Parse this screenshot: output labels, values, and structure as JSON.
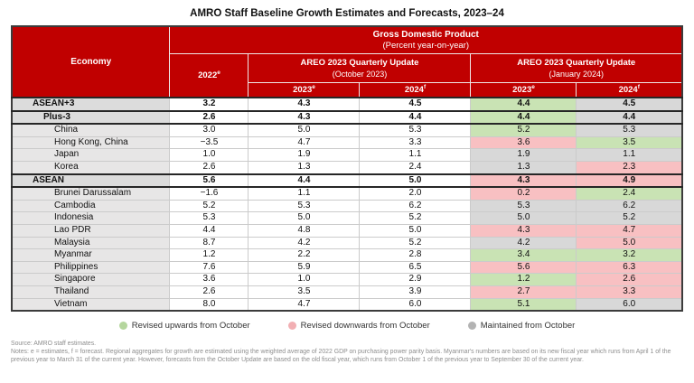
{
  "title": "AMRO Staff Baseline Growth Estimates and Forecasts, 2023–24",
  "chart_data": {
    "type": "table",
    "title": "AMRO Staff Baseline Growth Estimates and Forecasts, 2023–24",
    "banner": {
      "line1": "Gross Domestic Product",
      "line2": "(Percent year-on-year)"
    },
    "columns": {
      "economy": "Economy",
      "base": {
        "year": "2022",
        "sup": "e"
      },
      "groups": [
        {
          "title": "AREO 2023 Quarterly Update",
          "subtitle": "(October 2023)",
          "sub": [
            {
              "year": "2023",
              "sup": "e"
            },
            {
              "year": "2024",
              "sup": "f"
            }
          ]
        },
        {
          "title": "AREO 2023 Quarterly Update",
          "subtitle": "(January 2024)",
          "sub": [
            {
              "year": "2023",
              "sup": "e"
            },
            {
              "year": "2024",
              "sup": "f"
            }
          ]
        }
      ]
    },
    "rows": [
      {
        "name": "ASEAN+3",
        "level": "aggregate",
        "v2022": "3.2",
        "oct2023": "4.3",
        "oct2024": "4.5",
        "jan2023": "4.4",
        "jan2023_status": "up",
        "jan2024": "4.5",
        "jan2024_status": "same"
      },
      {
        "name": "Plus-3",
        "level": "aggregate2",
        "v2022": "2.6",
        "oct2023": "4.3",
        "oct2024": "4.4",
        "jan2023": "4.4",
        "jan2023_status": "up",
        "jan2024": "4.4",
        "jan2024_status": "same"
      },
      {
        "name": "China",
        "level": "country",
        "v2022": "3.0",
        "oct2023": "5.0",
        "oct2024": "5.3",
        "jan2023": "5.2",
        "jan2023_status": "up",
        "jan2024": "5.3",
        "jan2024_status": "same"
      },
      {
        "name": "Hong Kong, China",
        "level": "country",
        "v2022": "−3.5",
        "oct2023": "4.7",
        "oct2024": "3.3",
        "jan2023": "3.6",
        "jan2023_status": "down",
        "jan2024": "3.5",
        "jan2024_status": "up"
      },
      {
        "name": "Japan",
        "level": "country",
        "v2022": "1.0",
        "oct2023": "1.9",
        "oct2024": "1.1",
        "jan2023": "1.9",
        "jan2023_status": "same",
        "jan2024": "1.1",
        "jan2024_status": "same"
      },
      {
        "name": "Korea",
        "level": "country",
        "v2022": "2.6",
        "oct2023": "1.3",
        "oct2024": "2.4",
        "jan2023": "1.3",
        "jan2023_status": "same",
        "jan2024": "2.3",
        "jan2024_status": "down"
      },
      {
        "name": "ASEAN",
        "level": "aggregate",
        "v2022": "5.6",
        "oct2023": "4.4",
        "oct2024": "5.0",
        "jan2023": "4.3",
        "jan2023_status": "down",
        "jan2024": "4.9",
        "jan2024_status": "down"
      },
      {
        "name": "Brunei Darussalam",
        "level": "country",
        "v2022": "−1.6",
        "oct2023": "1.1",
        "oct2024": "2.0",
        "jan2023": "0.2",
        "jan2023_status": "down",
        "jan2024": "2.4",
        "jan2024_status": "up"
      },
      {
        "name": "Cambodia",
        "level": "country",
        "v2022": "5.2",
        "oct2023": "5.3",
        "oct2024": "6.2",
        "jan2023": "5.3",
        "jan2023_status": "same",
        "jan2024": "6.2",
        "jan2024_status": "same"
      },
      {
        "name": "Indonesia",
        "level": "country",
        "v2022": "5.3",
        "oct2023": "5.0",
        "oct2024": "5.2",
        "jan2023": "5.0",
        "jan2023_status": "same",
        "jan2024": "5.2",
        "jan2024_status": "same"
      },
      {
        "name": "Lao PDR",
        "level": "country",
        "v2022": "4.4",
        "oct2023": "4.8",
        "oct2024": "5.0",
        "jan2023": "4.3",
        "jan2023_status": "down",
        "jan2024": "4.7",
        "jan2024_status": "down"
      },
      {
        "name": "Malaysia",
        "level": "country",
        "v2022": "8.7",
        "oct2023": "4.2",
        "oct2024": "5.2",
        "jan2023": "4.2",
        "jan2023_status": "same",
        "jan2024": "5.0",
        "jan2024_status": "down"
      },
      {
        "name": "Myanmar",
        "level": "country",
        "v2022": "1.2",
        "oct2023": "2.2",
        "oct2024": "2.8",
        "jan2023": "3.4",
        "jan2023_status": "up",
        "jan2024": "3.2",
        "jan2024_status": "up"
      },
      {
        "name": "Philippines",
        "level": "country",
        "v2022": "7.6",
        "oct2023": "5.9",
        "oct2024": "6.5",
        "jan2023": "5.6",
        "jan2023_status": "down",
        "jan2024": "6.3",
        "jan2024_status": "down"
      },
      {
        "name": "Singapore",
        "level": "country",
        "v2022": "3.6",
        "oct2023": "1.0",
        "oct2024": "2.9",
        "jan2023": "1.2",
        "jan2023_status": "up",
        "jan2024": "2.6",
        "jan2024_status": "down"
      },
      {
        "name": "Thailand",
        "level": "country",
        "v2022": "2.6",
        "oct2023": "3.5",
        "oct2024": "3.9",
        "jan2023": "2.7",
        "jan2023_status": "down",
        "jan2024": "3.3",
        "jan2024_status": "down"
      },
      {
        "name": "Vietnam",
        "level": "country",
        "v2022": "8.0",
        "oct2023": "4.7",
        "oct2024": "6.0",
        "jan2023": "5.1",
        "jan2023_status": "up",
        "jan2024": "6.0",
        "jan2024_status": "same"
      }
    ]
  },
  "legend": [
    {
      "label": "Revised upwards from October",
      "status": "up",
      "color": "#B5D69E"
    },
    {
      "label": "Revised downwards from October",
      "status": "down",
      "color": "#F2AFB3"
    },
    {
      "label": "Maintained from October",
      "status": "same",
      "color": "#B3B3B3"
    }
  ],
  "colors": {
    "header_red": "#C00000",
    "status_up": "#C9E3B4",
    "status_down": "#F8C0C2",
    "status_same": "#D8D8D8",
    "economy_column": "#E7E6E6"
  },
  "footnotes": {
    "source": "Source: AMRO staff estimates.",
    "notes": "Notes: e = estimates, f = forecast. Regional aggregates for growth are estimated using the weighted average of 2022 GDP on purchasing power parity basis. Myanmar's numbers are based on its new fiscal year which runs from April 1 of the previous year to March 31 of the current year. However, forecasts from the October Update are based on the old fiscal year, which runs from October 1 of the previous year to September 30 of the current year."
  }
}
